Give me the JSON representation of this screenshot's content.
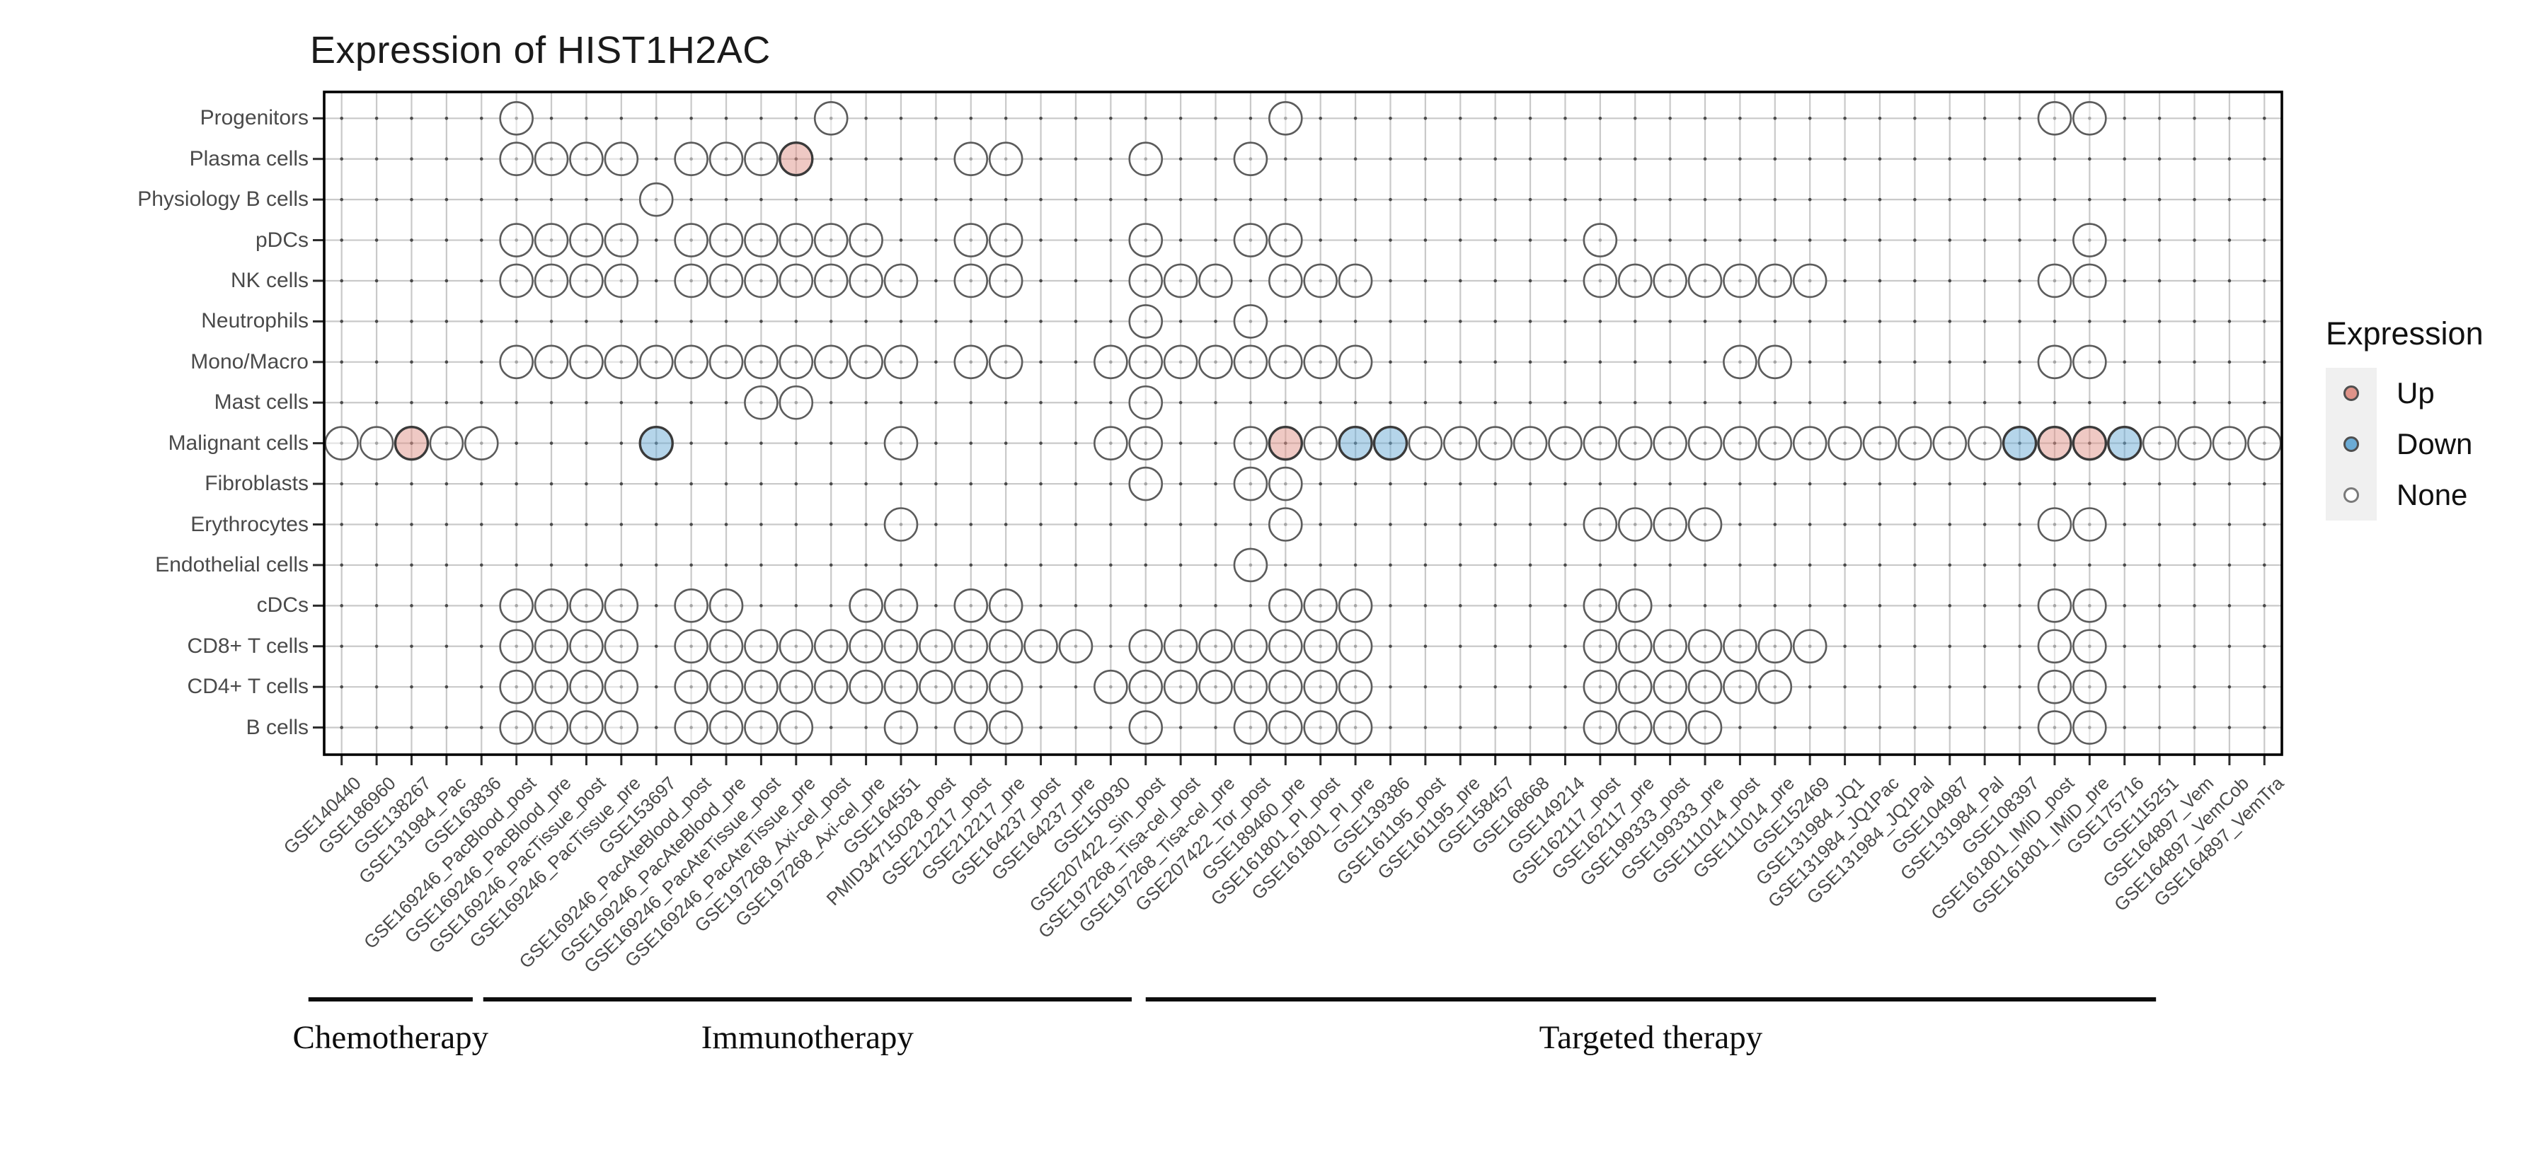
{
  "title": "Expression of HIST1H2AC",
  "legend": {
    "title": "Expression",
    "items": [
      {
        "label": "Up",
        "color": "#DF9389"
      },
      {
        "label": "Down",
        "color": "#6BABD5"
      },
      {
        "label": "None",
        "color": "#FFFFFF"
      }
    ]
  },
  "chart_data": {
    "type": "scatter",
    "subtype": "categorical-dot-matrix",
    "title": "Expression of HIST1H2AC",
    "legend_title": "Expression",
    "legend_position": "right",
    "grid": true,
    "x_categories": [
      "GSE140440",
      "GSE186960",
      "GSE138267",
      "GSE131984_Pac",
      "GSE163836",
      "GSE169246_PacBlood_post",
      "GSE169246_PacBlood_pre",
      "GSE169246_PacTissue_post",
      "GSE169246_PacTissue_pre",
      "GSE153697",
      "GSE169246_PacAteBlood_post",
      "GSE169246_PacAteBlood_pre",
      "GSE169246_PacAteTissue_post",
      "GSE169246_PacAteTissue_pre",
      "GSE197268_Axi-cel_post",
      "GSE197268_Axi-cel_pre",
      "GSE164551",
      "PMID34715028_post",
      "GSE212217_post",
      "GSE212217_pre",
      "GSE164237_post",
      "GSE164237_pre",
      "GSE150930",
      "GSE207422_Sin_post",
      "GSE197268_Tisa-cel_post",
      "GSE197268_Tisa-cel_pre",
      "GSE207422_Tor_post",
      "GSE189460_pre",
      "GSE161801_PI_post",
      "GSE161801_PI_pre",
      "GSE139386",
      "GSE161195_post",
      "GSE161195_pre",
      "GSE158457",
      "GSE168668",
      "GSE149214",
      "GSE162117_post",
      "GSE162117_pre",
      "GSE199333_post",
      "GSE199333_pre",
      "GSE111014_post",
      "GSE111014_pre",
      "GSE152469",
      "GSE131984_JQ1",
      "GSE131984_JQ1Pac",
      "GSE131984_JQ1Pal",
      "GSE104987",
      "GSE131984_Pal",
      "GSE108397",
      "GSE161801_IMiD_post",
      "GSE161801_IMiD_pre",
      "GSE175716",
      "GSE115251",
      "GSE164897_Vem",
      "GSE164897_VemCob",
      "GSE164897_VemTra"
    ],
    "y_categories": [
      "Progenitors",
      "Plasma cells",
      "Physiology B cells",
      "pDCs",
      "NK cells",
      "Neutrophils",
      "Mono/Macro",
      "Mast cells",
      "Malignant cells",
      "Fibroblasts",
      "Erythrocytes",
      "Endothelial cells",
      "cDCs",
      "CD8+ T cells",
      "CD4+ T cells",
      "B cells"
    ],
    "status_colors": {
      "up": "#DF9389",
      "down": "#6BABD5",
      "none": "#FFFFFF"
    },
    "point_fill_opacity": 0.5,
    "points": [
      {
        "row": "Progenitors",
        "none": [
          6,
          15,
          28,
          50,
          51
        ]
      },
      {
        "row": "Plasma cells",
        "none": [
          6,
          7,
          8,
          9,
          11,
          12,
          13,
          19,
          20,
          24,
          27
        ],
        "up": [
          14
        ]
      },
      {
        "row": "Physiology B cells",
        "none": [
          10
        ]
      },
      {
        "row": "pDCs",
        "none": [
          6,
          7,
          8,
          9,
          11,
          12,
          13,
          14,
          15,
          16,
          19,
          20,
          24,
          27,
          28,
          37,
          51
        ]
      },
      {
        "row": "NK cells",
        "none": [
          6,
          7,
          8,
          9,
          11,
          12,
          13,
          14,
          15,
          16,
          17,
          19,
          20,
          24,
          25,
          26,
          28,
          29,
          30,
          37,
          38,
          39,
          40,
          41,
          42,
          43,
          50,
          51
        ]
      },
      {
        "row": "Neutrophils",
        "none": [
          24,
          27
        ]
      },
      {
        "row": "Mono/Macro",
        "none": [
          6,
          7,
          8,
          9,
          10,
          11,
          12,
          13,
          14,
          15,
          16,
          17,
          19,
          20,
          23,
          24,
          25,
          26,
          27,
          28,
          29,
          30,
          41,
          42,
          50,
          51
        ]
      },
      {
        "row": "Mast cells",
        "none": [
          13,
          14,
          24
        ]
      },
      {
        "row": "Malignant cells",
        "none": [
          1,
          2,
          4,
          5,
          17,
          23,
          24,
          27,
          29,
          32,
          33,
          34,
          35,
          36,
          37,
          38,
          39,
          40,
          41,
          42,
          43,
          44,
          45,
          46,
          47,
          48,
          53,
          54,
          55,
          56
        ],
        "up": [
          3,
          28,
          50,
          51
        ],
        "down": [
          10,
          30,
          31,
          49,
          52
        ]
      },
      {
        "row": "Fibroblasts",
        "none": [
          24,
          27,
          28
        ]
      },
      {
        "row": "Erythrocytes",
        "none": [
          17,
          28,
          37,
          38,
          39,
          40,
          50,
          51
        ]
      },
      {
        "row": "Endothelial cells",
        "none": [
          27
        ]
      },
      {
        "row": "cDCs",
        "none": [
          6,
          7,
          8,
          9,
          11,
          12,
          16,
          17,
          19,
          20,
          28,
          29,
          30,
          37,
          38,
          50,
          51
        ]
      },
      {
        "row": "CD8+ T cells",
        "none": [
          6,
          7,
          8,
          9,
          11,
          12,
          13,
          14,
          15,
          16,
          17,
          18,
          19,
          20,
          21,
          22,
          24,
          25,
          26,
          27,
          28,
          29,
          30,
          37,
          38,
          39,
          40,
          41,
          42,
          43,
          50,
          51
        ]
      },
      {
        "row": "CD4+ T cells",
        "none": [
          6,
          7,
          8,
          9,
          11,
          12,
          13,
          14,
          15,
          16,
          17,
          18,
          19,
          20,
          23,
          24,
          25,
          26,
          27,
          28,
          29,
          30,
          37,
          38,
          39,
          40,
          41,
          42,
          50,
          51
        ]
      },
      {
        "row": "B cells",
        "none": [
          6,
          7,
          8,
          9,
          11,
          12,
          13,
          14,
          17,
          19,
          20,
          24,
          27,
          28,
          29,
          30,
          37,
          38,
          39,
          40,
          50,
          51
        ]
      }
    ],
    "groups": [
      {
        "label": "Chemotherapy",
        "line_start_col": 0.05,
        "line_end_col": 4.75
      },
      {
        "label": "Immunotherapy",
        "line_start_col": 5.05,
        "line_end_col": 23.6
      },
      {
        "label": "Targeted therapy",
        "line_start_col": 24.0,
        "line_end_col": 52.9
      }
    ],
    "colors": {
      "gridline": "#C9C9C9",
      "grid_dot": "#4A4A4A",
      "panel_border": "#000000",
      "tick": "#2B2B2B",
      "axis_text": "#4A4A4A",
      "none_stroke": "#5C5C5C",
      "status_stroke": "#3A3A3A",
      "annotation_line": "#0D0D0D"
    }
  }
}
